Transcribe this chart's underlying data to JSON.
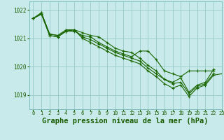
{
  "background_color": "#c8eaea",
  "grid_color": "#96c8c8",
  "line_color": "#1a6600",
  "marker_color": "#1a6600",
  "title": "Graphe pression niveau de la mer (hPa)",
  "title_color": "#1a5c00",
  "title_fontsize": 7.5,
  "xlim": [
    -0.5,
    23
  ],
  "ylim": [
    1018.5,
    1022.3
  ],
  "yticks": [
    1019,
    1020,
    1021,
    1022
  ],
  "xticks": [
    0,
    1,
    2,
    3,
    4,
    5,
    6,
    7,
    8,
    9,
    10,
    11,
    12,
    13,
    14,
    15,
    16,
    17,
    18,
    19,
    20,
    21,
    22,
    23
  ],
  "series": [
    {
      "x": [
        0,
        1,
        2,
        3,
        4,
        5,
        6,
        7,
        8,
        9,
        10,
        11,
        12,
        13,
        14,
        15,
        16,
        17,
        18,
        19,
        20,
        21,
        22
      ],
      "y": [
        1021.7,
        1021.9,
        1021.15,
        1021.1,
        1021.25,
        1021.25,
        1021.1,
        1021.05,
        1020.85,
        1020.7,
        1020.55,
        1020.45,
        1020.35,
        1020.55,
        1020.55,
        1020.25,
        1019.85,
        1019.75,
        1019.65,
        1019.85,
        1019.85,
        1019.85,
        1019.85
      ]
    },
    {
      "x": [
        0,
        1,
        2,
        3,
        4,
        5,
        6,
        7,
        8,
        9,
        10,
        11,
        12,
        13,
        14,
        15,
        16,
        17,
        18,
        19,
        20,
        21,
        22
      ],
      "y": [
        1021.7,
        1021.9,
        1021.15,
        1021.1,
        1021.3,
        1021.3,
        1021.2,
        1021.1,
        1021.05,
        1020.85,
        1020.65,
        1020.55,
        1020.5,
        1020.3,
        1020.05,
        1019.85,
        1019.55,
        1019.45,
        1019.6,
        1019.1,
        1019.35,
        1019.45,
        1019.9
      ]
    },
    {
      "x": [
        0,
        1,
        2,
        3,
        4,
        5,
        6,
        7,
        8,
        9,
        10,
        11,
        12,
        13,
        14,
        15,
        16,
        17,
        18,
        19,
        20,
        21,
        22
      ],
      "y": [
        1021.7,
        1021.85,
        1021.1,
        1021.05,
        1021.25,
        1021.3,
        1021.05,
        1020.95,
        1020.8,
        1020.65,
        1020.5,
        1020.4,
        1020.3,
        1020.2,
        1019.95,
        1019.75,
        1019.55,
        1019.4,
        1019.45,
        1019.05,
        1019.3,
        1019.4,
        1019.75
      ]
    },
    {
      "x": [
        0,
        1,
        2,
        3,
        4,
        5,
        6,
        7,
        8,
        9,
        10,
        11,
        12,
        13,
        14,
        15,
        16,
        17,
        18,
        19,
        20,
        21,
        22,
        23
      ],
      "y": [
        1021.7,
        1021.85,
        1021.1,
        1021.05,
        1021.25,
        1021.3,
        1021.0,
        1020.85,
        1020.7,
        1020.55,
        1020.4,
        1020.3,
        1020.2,
        1020.1,
        1019.85,
        1019.65,
        1019.4,
        1019.25,
        1019.35,
        1018.95,
        1019.25,
        1019.35,
        1019.7,
        1019.75
      ]
    }
  ]
}
